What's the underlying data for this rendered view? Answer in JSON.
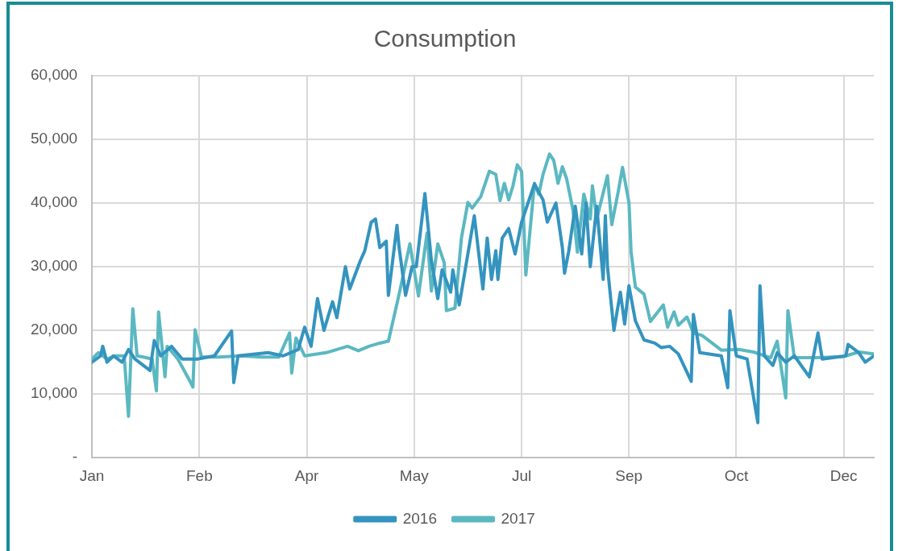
{
  "chart_data": {
    "type": "line",
    "title": "Consumption",
    "xlim": [
      "--01-01",
      "--12-31"
    ],
    "xticks": [
      {
        "value": "--01-01",
        "label": "Jan"
      },
      {
        "value": "--02-20",
        "label": "Feb"
      },
      {
        "value": "--04-11",
        "label": "Apr"
      },
      {
        "value": "--05-31",
        "label": "May"
      },
      {
        "value": "--07-20",
        "label": "Jul"
      },
      {
        "value": "--09-08",
        "label": "Sep"
      },
      {
        "value": "--10-28",
        "label": "Oct"
      },
      {
        "value": "--12-17",
        "label": "Dec"
      }
    ],
    "ylim": [
      0,
      60000
    ],
    "yticks": [
      {
        "value": 0,
        "label": "-"
      },
      {
        "value": 10000,
        "label": "10,000"
      },
      {
        "value": 20000,
        "label": "20,000"
      },
      {
        "value": 30000,
        "label": "30,000"
      },
      {
        "value": 40000,
        "label": "40,000"
      },
      {
        "value": 50000,
        "label": "50,000"
      },
      {
        "value": 60000,
        "label": "60,000"
      }
    ],
    "grid": true,
    "legend": "bottom",
    "marker": "none",
    "line_style": "solid",
    "series": [
      {
        "name": "2016",
        "color": "#3494bf",
        "x": [
          "--01-01",
          "--01-05",
          "--01-06",
          "--01-08",
          "--01-11",
          "--01-15",
          "--01-18",
          "--01-21",
          "--01-28",
          "--01-30",
          "--02-02",
          "--02-07",
          "--02-12",
          "--02-19",
          "--02-27",
          "--03-07",
          "--03-08",
          "--03-10",
          "--03-24",
          "--03-31",
          "--04-07",
          "--04-10",
          "--04-13",
          "--04-16",
          "--04-19",
          "--04-23",
          "--04-25",
          "--04-29",
          "--05-01",
          "--05-06",
          "--05-08",
          "--05-11",
          "--05-13",
          "--05-15",
          "--05-18",
          "--05-19",
          "--05-23",
          "--05-24",
          "--05-27",
          "--05-30",
          "--06-01",
          "--06-05",
          "--06-08",
          "--06-11",
          "--06-13",
          "--06-17",
          "--06-18",
          "--06-21",
          "--06-28",
          "--07-02",
          "--07-04",
          "--07-06",
          "--07-08",
          "--07-09",
          "--07-11",
          "--07-14",
          "--07-17",
          "--07-20",
          "--07-26",
          "--07-30",
          "--08-01",
          "--08-05",
          "--08-08",
          "--08-09",
          "--08-11",
          "--08-14",
          "--08-17",
          "--08-19",
          "--08-21",
          "--08-24",
          "--08-27",
          "--08-28",
          "--08-29",
          "--09-01",
          "--09-04",
          "--09-06",
          "--09-08",
          "--09-11",
          "--09-15",
          "--09-20",
          "--09-23",
          "--09-27",
          "--10-01",
          "--10-07",
          "--10-08",
          "--10-11",
          "--10-21",
          "--10-24",
          "--10-25",
          "--10-28",
          "--11-02",
          "--11-07",
          "--11-08",
          "--11-10",
          "--11-14",
          "--11-16",
          "--11-20",
          "--11-24",
          "--12-01",
          "--12-05",
          "--12-07",
          "--12-18",
          "--12-19",
          "--12-24",
          "--12-27",
          "--12-31"
        ],
        "values": [
          15000,
          16000,
          17500,
          15000,
          16000,
          15000,
          17000,
          15500,
          13700,
          18400,
          16000,
          17500,
          15500,
          15500,
          16000,
          19900,
          11800,
          16000,
          16500,
          16000,
          17000,
          20500,
          17500,
          25000,
          20000,
          24500,
          22000,
          30000,
          26500,
          31000,
          32500,
          37000,
          37500,
          33000,
          34000,
          25500,
          36500,
          33000,
          25500,
          30000,
          30000,
          41500,
          31000,
          25000,
          29500,
          26000,
          29500,
          24000,
          38000,
          26500,
          34500,
          28000,
          32500,
          28000,
          34500,
          36000,
          32000,
          37000,
          43000,
          40500,
          37000,
          40000,
          33000,
          29000,
          32500,
          39500,
          32000,
          40000,
          30000,
          39500,
          28000,
          38000,
          30000,
          20000,
          26000,
          21000,
          27000,
          21500,
          18500,
          18000,
          17300,
          17500,
          16300,
          12000,
          22500,
          16500,
          16000,
          11000,
          23100,
          16000,
          15500,
          5500,
          27000,
          16000,
          14500,
          16500,
          15000,
          16000,
          12700,
          19600,
          15500,
          16000,
          17800,
          16500,
          15000,
          16000
        ]
      },
      {
        "name": "2017",
        "color": "#5bb8c1",
        "x": [
          "--01-01",
          "--01-04",
          "--01-08",
          "--01-12",
          "--01-16",
          "--01-18",
          "--01-20",
          "--01-22",
          "--01-25",
          "--01-29",
          "--01-31",
          "--02-01",
          "--02-04",
          "--02-05",
          "--02-10",
          "--02-15",
          "--02-17",
          "--02-18",
          "--02-21",
          "--03-01",
          "--03-11",
          "--03-21",
          "--03-29",
          "--04-03",
          "--04-04",
          "--04-06",
          "--04-10",
          "--04-20",
          "--04-30",
          "--05-05",
          "--05-10",
          "--05-15",
          "--05-19",
          "--05-24",
          "--05-29",
          "--06-02",
          "--06-06",
          "--06-08",
          "--06-11",
          "--06-14",
          "--06-15",
          "--06-19",
          "--06-22",
          "--06-25",
          "--06-27",
          "--07-01",
          "--07-05",
          "--07-08",
          "--07-10",
          "--07-12",
          "--07-14",
          "--07-16",
          "--07-18",
          "--07-20",
          "--07-22",
          "--07-26",
          "--07-28",
          "--07-30",
          "--08-02",
          "--08-04",
          "--08-06",
          "--08-08",
          "--08-10",
          "--08-13",
          "--08-15",
          "--08-18",
          "--08-21",
          "--08-22",
          "--08-24",
          "--08-29",
          "--08-31",
          "--09-03",
          "--09-05",
          "--09-08",
          "--09-09",
          "--09-11",
          "--09-15",
          "--09-18",
          "--09-24",
          "--09-26",
          "--09-29",
          "--10-01",
          "--10-05",
          "--10-08",
          "--10-12",
          "--10-16",
          "--10-21",
          "--10-29",
          "--11-05",
          "--11-13",
          "--11-16",
          "--11-20",
          "--11-21",
          "--11-24",
          "--12-04",
          "--12-17",
          "--12-24",
          "--12-31"
        ],
        "values": [
          15500,
          16500,
          15500,
          16000,
          16000,
          6500,
          23400,
          16000,
          15800,
          15500,
          10500,
          22900,
          12700,
          17500,
          15500,
          12400,
          11100,
          20100,
          15800,
          15800,
          16000,
          15800,
          15800,
          19600,
          13300,
          18800,
          16000,
          16500,
          17500,
          16800,
          17500,
          18000,
          18300,
          25700,
          33600,
          25400,
          35300,
          26200,
          33600,
          30600,
          23100,
          23500,
          34500,
          40100,
          39200,
          41000,
          45000,
          44500,
          40400,
          43100,
          40500,
          42700,
          46000,
          45000,
          28700,
          43100,
          41400,
          44500,
          47700,
          46700,
          43100,
          45700,
          43800,
          38800,
          32300,
          41400,
          37500,
          42700,
          37500,
          44300,
          36600,
          41800,
          45600,
          40100,
          32300,
          26800,
          25700,
          21400,
          24000,
          20500,
          22900,
          20800,
          22100,
          19600,
          19200,
          18200,
          16900,
          17000,
          16600,
          15700,
          18300,
          9400,
          23100,
          15700,
          15700,
          15900,
          16600,
          16300
        ]
      }
    ]
  }
}
